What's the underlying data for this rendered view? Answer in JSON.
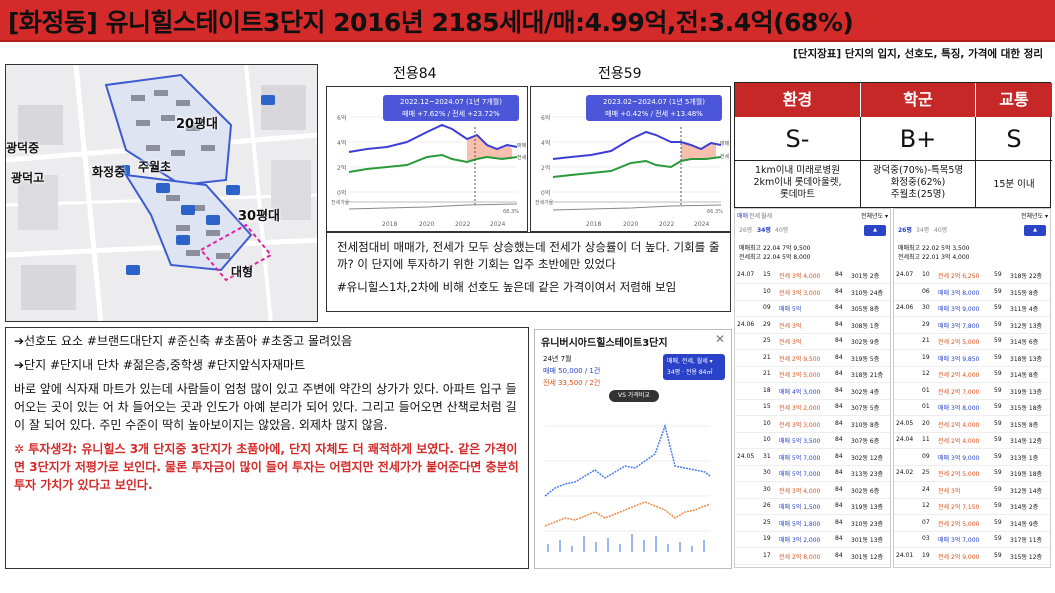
{
  "header": {
    "title": "[화정동] 유니힐스테이트3단지 2016년 2185세대/매:4.99억,전:3.4억(68%)"
  },
  "subtitle": "[단지장표] 단지의 입지, 선호도, 특징, 가격에 대한 정리",
  "map": {
    "labels": [
      "광덕중",
      "광덕고",
      "화정중",
      "주월초",
      "20평대",
      "30평대",
      "대형"
    ]
  },
  "charts": [
    {
      "title": "전용84",
      "tag_period": "2022.12~2024.07 (1년 7개월)",
      "tag_change": "매매 +7.62% / 전세 +23.72%",
      "legend_sale": "매매",
      "legend_rent": "전세",
      "y_ticks": [
        "6억",
        "4억",
        "2억",
        "0억"
      ],
      "x_ticks": [
        "2018",
        "2020",
        "2022",
        "2024"
      ],
      "gap_label": "전세가율",
      "gap_value": "68.3%"
    },
    {
      "title": "전용59",
      "tag_period": "2023.02~2024.07 (1년 5개월)",
      "tag_change": "매매 +0.42% / 전세 +13.48%",
      "legend_sale": "매매",
      "legend_rent": "전세",
      "y_ticks": [
        "6억",
        "4억",
        "2억",
        "0억"
      ],
      "x_ticks": [
        "2018",
        "2020",
        "2022",
        "2024"
      ],
      "gap_label": "전세가율",
      "gap_value": "66.3%"
    }
  ],
  "comment_a": {
    "line1": "전세점대비 매매가, 전세가 모두 상승했는데 전세가 상승률이 더 높다. 기회를 줄까? 이 단지에 투자하기 위한 기회는 입주 초반에만 있었다",
    "line2": "#유니힐스1차,2차에 비해 선호도 높은데 같은 가격이여서 저렴해 보임"
  },
  "comment_b": {
    "line1": "➔선호도 요소 #브랜드대단지 #준신축 #초품아 #초중고 몰려있음",
    "line2": "➔단지 #단지내 단차 #젊은층,중학생 #단지앞식자재마트",
    "line3": "바로 앞에 식자재 마트가 있는데 사람들이 엄청 많이 있고 주변에 약간의 상가가 있다. 아파트 입구 들어오는 곳이 있는 어 차 들어오는 곳과 인도가 아예 분리가 되어 있다. 그리고 들어오면 산책로처럼 길이 잘 되어 있다. 주민 수준이 딱히 높아보이지는 않았음. 외제차 많지 않음.",
    "line4": "✲ 투자생각: 유니힐스 3개 단지중 3단지가 초품아에, 단지 자체도 더 쾌적하게 보였다. 같은 가격이면 3단지가 저평가로 보인다. 물론 투자금이 많이 들어 투자는 어렵지만 전세가가 붙어준다면 충분히 투자 가치가 있다고 보인다."
  },
  "grade": {
    "headers": [
      "환경",
      "학군",
      "교통"
    ],
    "grades": [
      "S-",
      "B+",
      "S"
    ],
    "details": [
      "1km이내 미래로병원\n2km이내 롯데아울렛,\n롯데마트",
      "광덕중(70%)-특목5명\n화정중(62%)\n주월초(25명)",
      "15분 이내"
    ]
  },
  "mini_chart": {
    "title": "유니버시아드힐스테이트3단지",
    "month": "24년 7월",
    "sale": "매매 50,000 / 1건",
    "rent": "전세 33,500 / 2건",
    "box_title": "매매, 전세, 월세 ▾",
    "box_sub": "34평 · 전용 84㎡",
    "compare": "VS 가격비교"
  },
  "table_left": {
    "header_tabs": [
      "매매",
      "전세",
      "월세"
    ],
    "sort": "전체년도 ▾",
    "sizes": [
      "26평",
      "34평",
      "40평"
    ],
    "info1": "매매최고 22.04 7억 9,500",
    "info2": "전세최고 22.04 5억 8,000",
    "rows": [
      [
        "24.07",
        "15",
        "전세 3억 4,000",
        "84",
        "301동 2층"
      ],
      [
        "",
        "10",
        "전세 3억 3,000",
        "84",
        "310동 24층"
      ],
      [
        "",
        "09",
        "매매 5억",
        "84",
        "305동 8층"
      ],
      [
        "24.06",
        "29",
        "전세 3억",
        "84",
        "308동 1층"
      ],
      [
        "",
        "25",
        "전세 3억",
        "84",
        "302동 9층"
      ],
      [
        "",
        "21",
        "전세 2억 9,500",
        "84",
        "319동 5층"
      ],
      [
        "",
        "21",
        "전세 3억 5,000",
        "84",
        "318동 21층"
      ],
      [
        "",
        "18",
        "매매 4억 3,000",
        "84",
        "302동 4층"
      ],
      [
        "",
        "15",
        "전세 3억 2,000",
        "84",
        "307동 5층"
      ],
      [
        "",
        "10",
        "전세 3억 3,000",
        "84",
        "310동 8층"
      ],
      [
        "",
        "10",
        "매매 5억 3,500",
        "84",
        "307동 6층"
      ],
      [
        "24.05",
        "31",
        "매매 5억 7,000",
        "84",
        "302동 12층"
      ],
      [
        "",
        "30",
        "매매 5억 7,000",
        "84",
        "313동 23층"
      ],
      [
        "",
        "30",
        "전세 3억 4,000",
        "84",
        "302동 6층"
      ],
      [
        "",
        "26",
        "매매 5억 1,500",
        "84",
        "319동 13층"
      ],
      [
        "",
        "25",
        "매매 5억 1,800",
        "84",
        "310동 23층"
      ],
      [
        "",
        "19",
        "매매 3억 2,000",
        "84",
        "301동 13층"
      ],
      [
        "",
        "17",
        "전세 2억 8,000",
        "84",
        "301동 12층"
      ]
    ]
  },
  "table_right": {
    "sort": "전체년도 ▾",
    "sizes": [
      "26평",
      "34평",
      "40평"
    ],
    "info1": "매매최고 22.02 5억 3,500",
    "info2": "전세최고 22.01 3억 4,000",
    "rows": [
      [
        "24.07",
        "10",
        "전세 2억 6,250",
        "59",
        "318동 22층"
      ],
      [
        "",
        "06",
        "매매 3억 8,000",
        "59",
        "315동 8층"
      ],
      [
        "24.06",
        "30",
        "매매 3억 9,000",
        "59",
        "311동 4층"
      ],
      [
        "",
        "29",
        "매매 3억 7,800",
        "59",
        "312동 13층"
      ],
      [
        "",
        "21",
        "전세 2억 5,000",
        "59",
        "314동 6층"
      ],
      [
        "",
        "19",
        "매매 3억 9,850",
        "59",
        "318동 13층"
      ],
      [
        "",
        "12",
        "전세 2억 4,000",
        "59",
        "314동 8층"
      ],
      [
        "",
        "01",
        "전세 2억 7,000",
        "59",
        "319동 13층"
      ],
      [
        "",
        "01",
        "매매 3억 8,000",
        "59",
        "315동 18층"
      ],
      [
        "24.05",
        "20",
        "전세 2억 4,000",
        "59",
        "315동 8층"
      ],
      [
        "24.04",
        "11",
        "전세 2억 4,000",
        "59",
        "314동 12층"
      ],
      [
        "",
        "09",
        "매매 3억 9,000",
        "59",
        "313동 1층"
      ],
      [
        "24.02",
        "25",
        "전세 2억 5,000",
        "59",
        "319동 18층"
      ],
      [
        "",
        "24",
        "전세 3억",
        "59",
        "312동 14층"
      ],
      [
        "",
        "12",
        "전세 2억 7,150",
        "59",
        "314동 2층"
      ],
      [
        "",
        "07",
        "전세 2억 5,000",
        "59",
        "314동 9층"
      ],
      [
        "",
        "03",
        "매매 3억 7,000",
        "59",
        "317동 11층"
      ],
      [
        "24.01",
        "19",
        "전세 2억 9,000",
        "59",
        "315동 12층"
      ]
    ]
  }
}
